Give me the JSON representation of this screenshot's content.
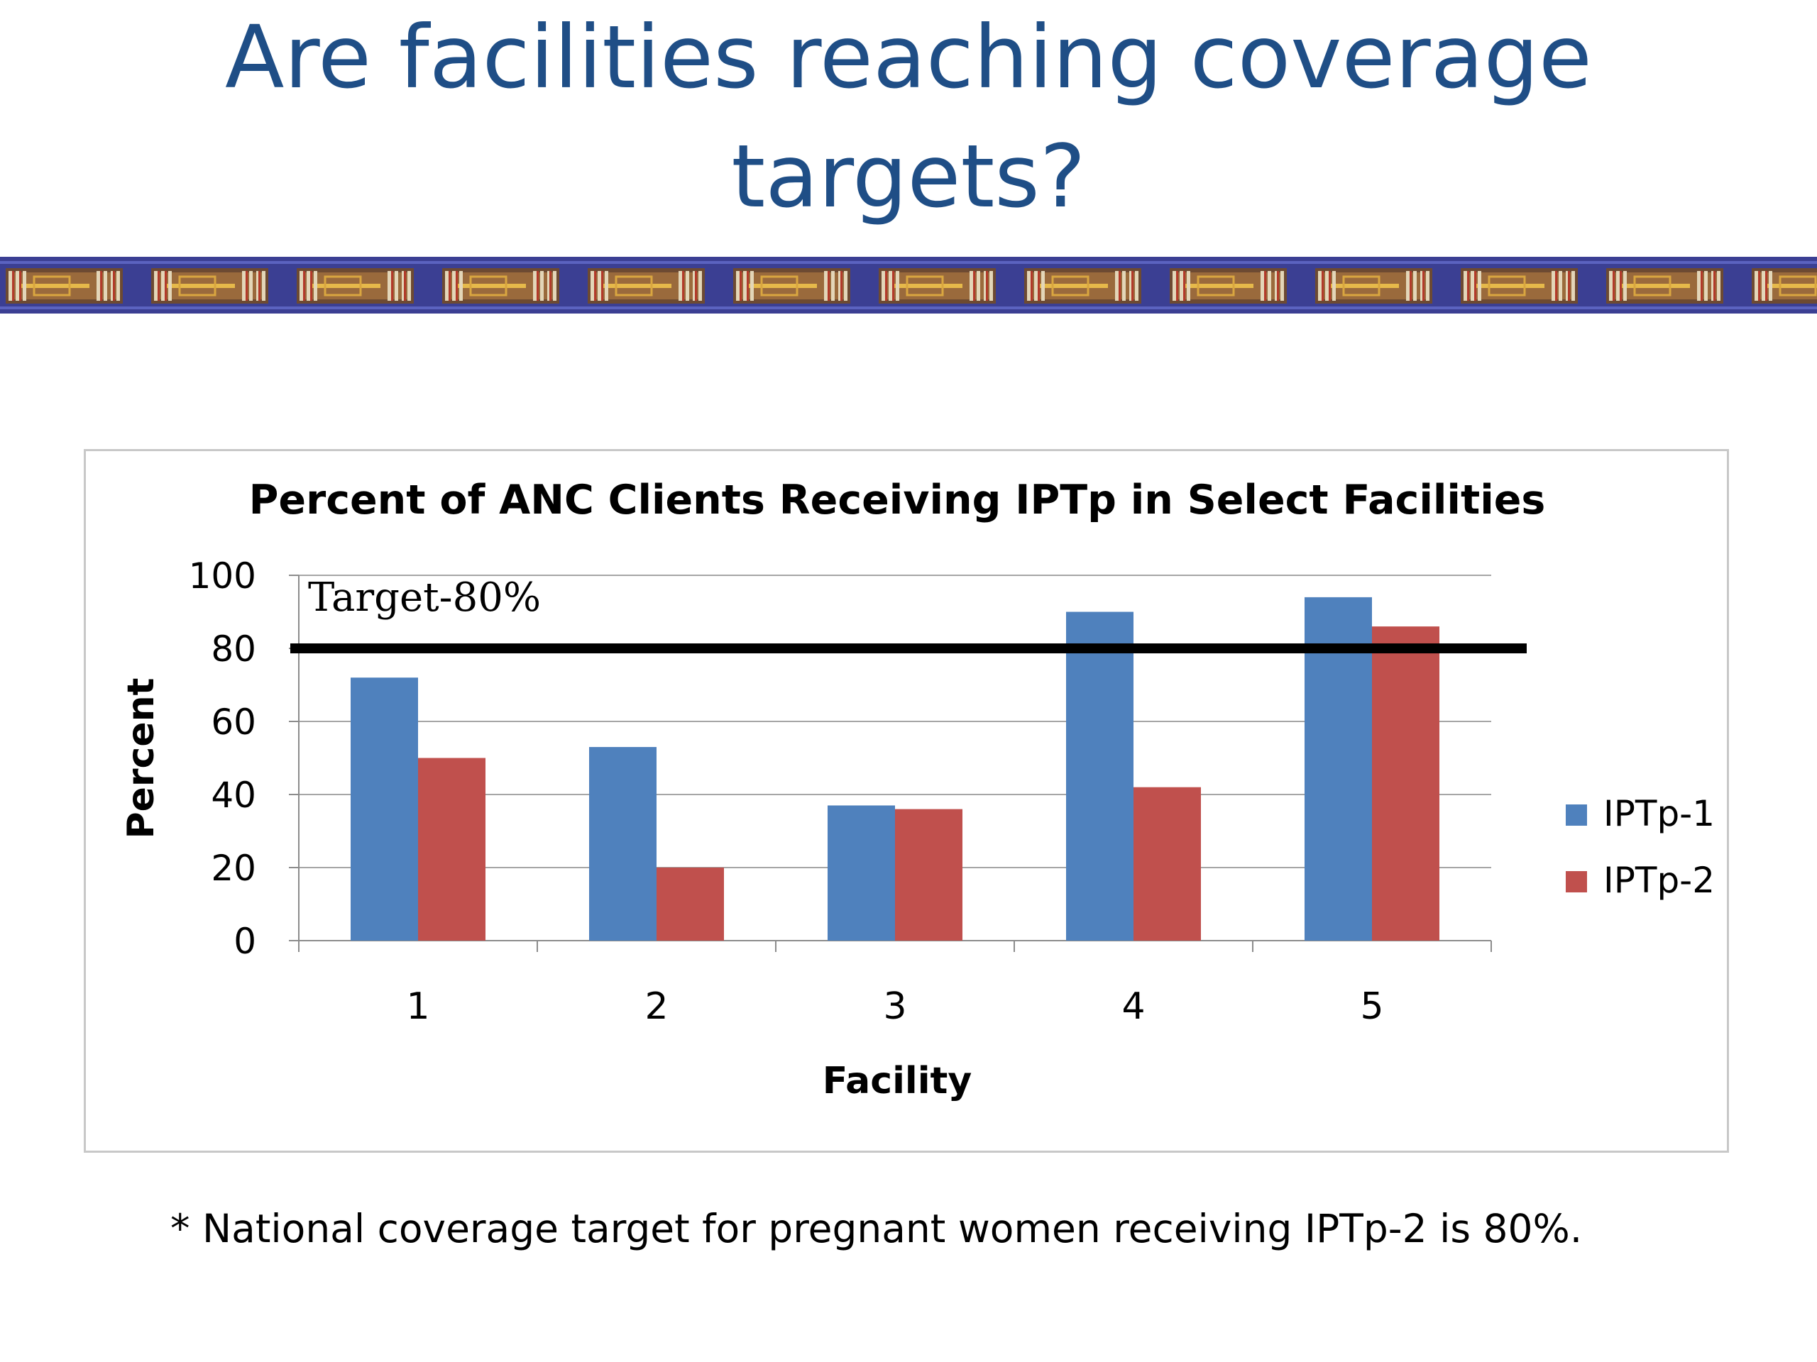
{
  "slide": {
    "title": "Are facilities reaching coverage targets?",
    "footnote": "* National coverage target for pregnant women receiving IPTp-2 is 80%."
  },
  "colors": {
    "title": "#1f4e86",
    "band": "#3b3f93",
    "series_1": "#4f81bd",
    "series_2": "#c0504d",
    "target_line": "#000000"
  },
  "chart_data": {
    "type": "bar",
    "title": "Percent of ANC Clients Receiving IPTp in Select Facilities",
    "xlabel": "Facility",
    "ylabel": "Percent",
    "categories": [
      "1",
      "2",
      "3",
      "4",
      "5"
    ],
    "series": [
      {
        "name": "IPTp-1",
        "values": [
          72,
          53,
          37,
          90,
          94
        ]
      },
      {
        "name": "IPTp-2",
        "values": [
          50,
          20,
          36,
          42,
          86
        ]
      }
    ],
    "ylim": [
      0,
      100
    ],
    "yticks": [
      0,
      20,
      40,
      60,
      80,
      100
    ],
    "grid": true,
    "legend": "right",
    "reference_line": {
      "value": 80,
      "label": "Target-80%"
    }
  }
}
